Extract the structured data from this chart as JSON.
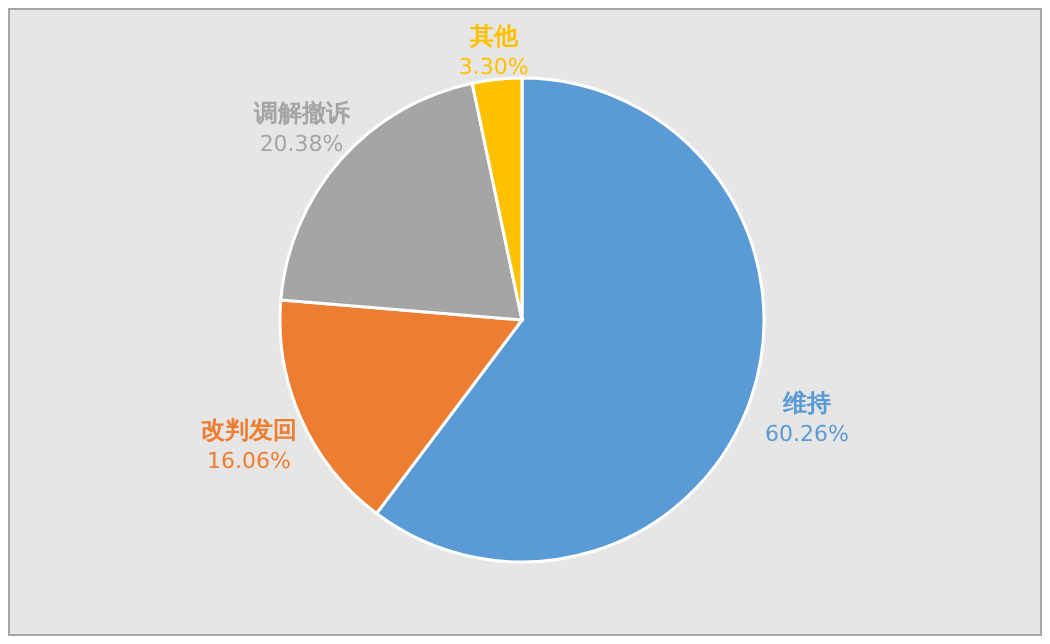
{
  "chart_data": {
    "type": "pie",
    "categories": [
      "维持",
      "改判发回",
      "调解撤诉",
      "其他"
    ],
    "values": [
      60.26,
      16.06,
      20.38,
      3.3
    ],
    "colors": [
      "#5b9bd5",
      "#ed7d31",
      "#a5a5a5",
      "#ffc000"
    ],
    "value_labels": [
      "60.26%",
      "16.06%",
      "20.38%",
      "3.30%"
    ]
  }
}
